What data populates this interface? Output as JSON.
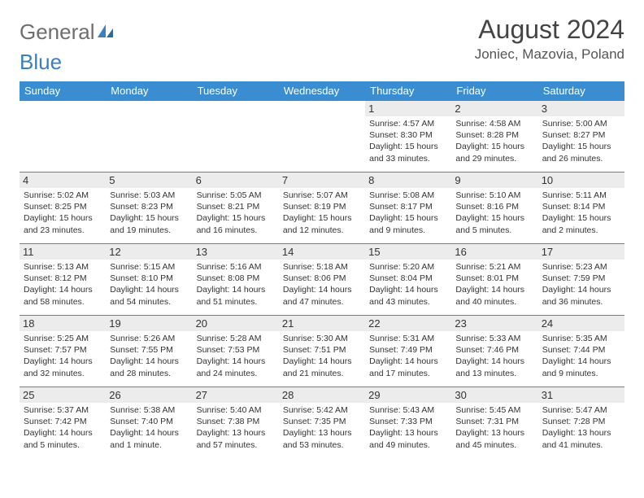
{
  "logo": {
    "text_gray": "General",
    "text_blue": "Blue"
  },
  "title": "August 2024",
  "location": "Joniec, Mazovia, Poland",
  "colors": {
    "header_bg": "#3a8dd0",
    "header_text": "#ffffff",
    "daynum_bg": "#ececec",
    "rule": "#3a8dd0",
    "text": "#333333",
    "logo_gray": "#6e6e6e",
    "logo_blue": "#3a7fc4"
  },
  "weekdays": [
    "Sunday",
    "Monday",
    "Tuesday",
    "Wednesday",
    "Thursday",
    "Friday",
    "Saturday"
  ],
  "weeks": [
    [
      {
        "empty": true
      },
      {
        "empty": true
      },
      {
        "empty": true
      },
      {
        "empty": true
      },
      {
        "n": "1",
        "sr": "Sunrise: 4:57 AM",
        "ss": "Sunset: 8:30 PM",
        "d1": "Daylight: 15 hours",
        "d2": "and 33 minutes."
      },
      {
        "n": "2",
        "sr": "Sunrise: 4:58 AM",
        "ss": "Sunset: 8:28 PM",
        "d1": "Daylight: 15 hours",
        "d2": "and 29 minutes."
      },
      {
        "n": "3",
        "sr": "Sunrise: 5:00 AM",
        "ss": "Sunset: 8:27 PM",
        "d1": "Daylight: 15 hours",
        "d2": "and 26 minutes."
      }
    ],
    [
      {
        "n": "4",
        "sr": "Sunrise: 5:02 AM",
        "ss": "Sunset: 8:25 PM",
        "d1": "Daylight: 15 hours",
        "d2": "and 23 minutes."
      },
      {
        "n": "5",
        "sr": "Sunrise: 5:03 AM",
        "ss": "Sunset: 8:23 PM",
        "d1": "Daylight: 15 hours",
        "d2": "and 19 minutes."
      },
      {
        "n": "6",
        "sr": "Sunrise: 5:05 AM",
        "ss": "Sunset: 8:21 PM",
        "d1": "Daylight: 15 hours",
        "d2": "and 16 minutes."
      },
      {
        "n": "7",
        "sr": "Sunrise: 5:07 AM",
        "ss": "Sunset: 8:19 PM",
        "d1": "Daylight: 15 hours",
        "d2": "and 12 minutes."
      },
      {
        "n": "8",
        "sr": "Sunrise: 5:08 AM",
        "ss": "Sunset: 8:17 PM",
        "d1": "Daylight: 15 hours",
        "d2": "and 9 minutes."
      },
      {
        "n": "9",
        "sr": "Sunrise: 5:10 AM",
        "ss": "Sunset: 8:16 PM",
        "d1": "Daylight: 15 hours",
        "d2": "and 5 minutes."
      },
      {
        "n": "10",
        "sr": "Sunrise: 5:11 AM",
        "ss": "Sunset: 8:14 PM",
        "d1": "Daylight: 15 hours",
        "d2": "and 2 minutes."
      }
    ],
    [
      {
        "n": "11",
        "sr": "Sunrise: 5:13 AM",
        "ss": "Sunset: 8:12 PM",
        "d1": "Daylight: 14 hours",
        "d2": "and 58 minutes."
      },
      {
        "n": "12",
        "sr": "Sunrise: 5:15 AM",
        "ss": "Sunset: 8:10 PM",
        "d1": "Daylight: 14 hours",
        "d2": "and 54 minutes."
      },
      {
        "n": "13",
        "sr": "Sunrise: 5:16 AM",
        "ss": "Sunset: 8:08 PM",
        "d1": "Daylight: 14 hours",
        "d2": "and 51 minutes."
      },
      {
        "n": "14",
        "sr": "Sunrise: 5:18 AM",
        "ss": "Sunset: 8:06 PM",
        "d1": "Daylight: 14 hours",
        "d2": "and 47 minutes."
      },
      {
        "n": "15",
        "sr": "Sunrise: 5:20 AM",
        "ss": "Sunset: 8:04 PM",
        "d1": "Daylight: 14 hours",
        "d2": "and 43 minutes."
      },
      {
        "n": "16",
        "sr": "Sunrise: 5:21 AM",
        "ss": "Sunset: 8:01 PM",
        "d1": "Daylight: 14 hours",
        "d2": "and 40 minutes."
      },
      {
        "n": "17",
        "sr": "Sunrise: 5:23 AM",
        "ss": "Sunset: 7:59 PM",
        "d1": "Daylight: 14 hours",
        "d2": "and 36 minutes."
      }
    ],
    [
      {
        "n": "18",
        "sr": "Sunrise: 5:25 AM",
        "ss": "Sunset: 7:57 PM",
        "d1": "Daylight: 14 hours",
        "d2": "and 32 minutes."
      },
      {
        "n": "19",
        "sr": "Sunrise: 5:26 AM",
        "ss": "Sunset: 7:55 PM",
        "d1": "Daylight: 14 hours",
        "d2": "and 28 minutes."
      },
      {
        "n": "20",
        "sr": "Sunrise: 5:28 AM",
        "ss": "Sunset: 7:53 PM",
        "d1": "Daylight: 14 hours",
        "d2": "and 24 minutes."
      },
      {
        "n": "21",
        "sr": "Sunrise: 5:30 AM",
        "ss": "Sunset: 7:51 PM",
        "d1": "Daylight: 14 hours",
        "d2": "and 21 minutes."
      },
      {
        "n": "22",
        "sr": "Sunrise: 5:31 AM",
        "ss": "Sunset: 7:49 PM",
        "d1": "Daylight: 14 hours",
        "d2": "and 17 minutes."
      },
      {
        "n": "23",
        "sr": "Sunrise: 5:33 AM",
        "ss": "Sunset: 7:46 PM",
        "d1": "Daylight: 14 hours",
        "d2": "and 13 minutes."
      },
      {
        "n": "24",
        "sr": "Sunrise: 5:35 AM",
        "ss": "Sunset: 7:44 PM",
        "d1": "Daylight: 14 hours",
        "d2": "and 9 minutes."
      }
    ],
    [
      {
        "n": "25",
        "sr": "Sunrise: 5:37 AM",
        "ss": "Sunset: 7:42 PM",
        "d1": "Daylight: 14 hours",
        "d2": "and 5 minutes."
      },
      {
        "n": "26",
        "sr": "Sunrise: 5:38 AM",
        "ss": "Sunset: 7:40 PM",
        "d1": "Daylight: 14 hours",
        "d2": "and 1 minute."
      },
      {
        "n": "27",
        "sr": "Sunrise: 5:40 AM",
        "ss": "Sunset: 7:38 PM",
        "d1": "Daylight: 13 hours",
        "d2": "and 57 minutes."
      },
      {
        "n": "28",
        "sr": "Sunrise: 5:42 AM",
        "ss": "Sunset: 7:35 PM",
        "d1": "Daylight: 13 hours",
        "d2": "and 53 minutes."
      },
      {
        "n": "29",
        "sr": "Sunrise: 5:43 AM",
        "ss": "Sunset: 7:33 PM",
        "d1": "Daylight: 13 hours",
        "d2": "and 49 minutes."
      },
      {
        "n": "30",
        "sr": "Sunrise: 5:45 AM",
        "ss": "Sunset: 7:31 PM",
        "d1": "Daylight: 13 hours",
        "d2": "and 45 minutes."
      },
      {
        "n": "31",
        "sr": "Sunrise: 5:47 AM",
        "ss": "Sunset: 7:28 PM",
        "d1": "Daylight: 13 hours",
        "d2": "and 41 minutes."
      }
    ]
  ]
}
